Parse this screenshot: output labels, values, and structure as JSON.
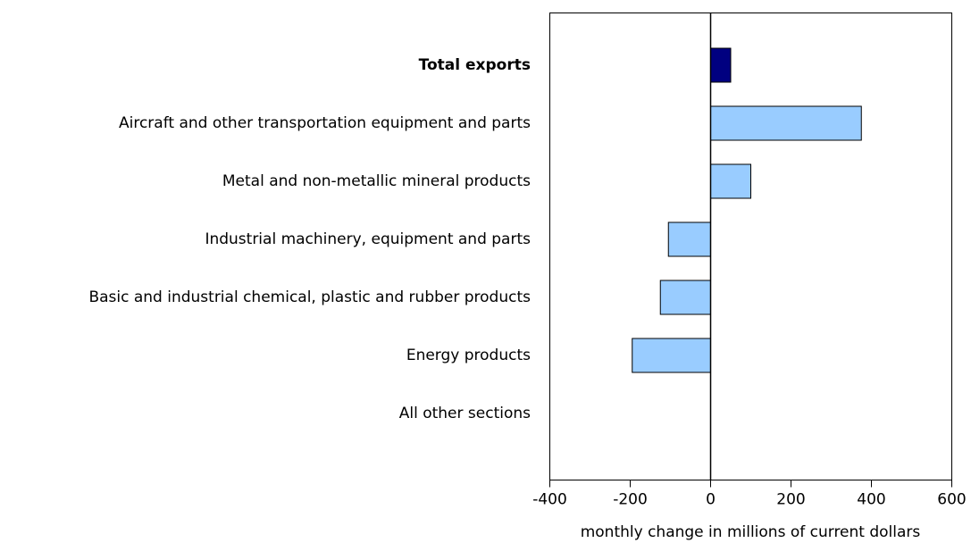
{
  "chart_data": {
    "type": "barh",
    "categories": [
      "Total exports",
      "Aircraft and other transportation equipment and parts",
      "Metal and non-metallic mineral products",
      "Industrial machinery, equipment and parts",
      "Basic and industrial chemical, plastic and rubber products",
      "Energy products",
      "All other sections"
    ],
    "values": [
      50,
      375,
      100,
      -105,
      -125,
      -195,
      0
    ],
    "colors": [
      "#000080",
      "#99ccff",
      "#99ccff",
      "#99ccff",
      "#99ccff",
      "#99ccff",
      "#99ccff"
    ],
    "xlim": [
      -400,
      600
    ],
    "xticks": [
      -400,
      -200,
      0,
      200,
      400,
      600
    ],
    "x_label": "monthly change in millions of current dollars",
    "grid": false
  }
}
